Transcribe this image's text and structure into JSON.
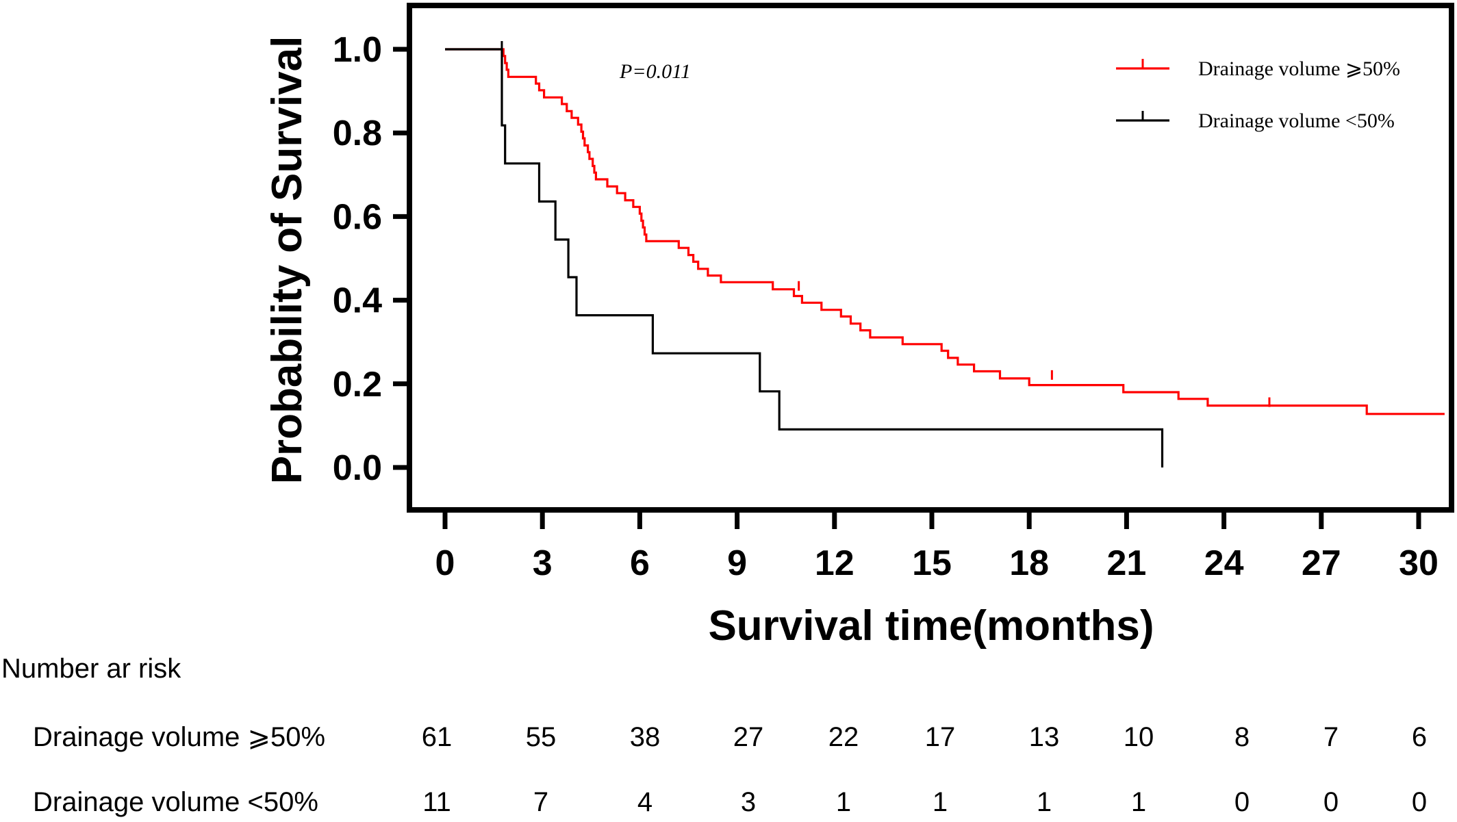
{
  "chart_data": {
    "type": "line",
    "subtype": "kaplan-meier",
    "title": "",
    "xlabel": "Survival time(months)",
    "ylabel": "Probability of Survival",
    "xlim": [
      0,
      30.8
    ],
    "ylim": [
      -0.1,
      1.1
    ],
    "xticks": [
      "0",
      "3",
      "6",
      "9",
      "12",
      "15",
      "18",
      "21",
      "24",
      "27",
      "30"
    ],
    "yticks": [
      "0.0",
      "0.2",
      "0.4",
      "0.6",
      "0.8",
      "1.0"
    ],
    "annotation": "P=0.011",
    "legend_position": "top-right",
    "series": [
      {
        "name": "Drainage volume ⩾50%",
        "color": "#ff0000",
        "steps": [
          [
            0,
            1.0
          ],
          [
            1.8,
            0.984
          ],
          [
            1.85,
            0.967
          ],
          [
            1.9,
            0.951
          ],
          [
            1.95,
            0.934
          ],
          [
            2.8,
            0.918
          ],
          [
            2.9,
            0.902
          ],
          [
            3.05,
            0.885
          ],
          [
            3.6,
            0.869
          ],
          [
            3.75,
            0.852
          ],
          [
            3.9,
            0.836
          ],
          [
            4.1,
            0.82
          ],
          [
            4.2,
            0.803
          ],
          [
            4.25,
            0.787
          ],
          [
            4.3,
            0.77
          ],
          [
            4.4,
            0.754
          ],
          [
            4.45,
            0.738
          ],
          [
            4.55,
            0.721
          ],
          [
            4.6,
            0.705
          ],
          [
            4.65,
            0.689
          ],
          [
            5.0,
            0.672
          ],
          [
            5.3,
            0.656
          ],
          [
            5.55,
            0.639
          ],
          [
            5.8,
            0.623
          ],
          [
            6.0,
            0.607
          ],
          [
            6.05,
            0.59
          ],
          [
            6.1,
            0.574
          ],
          [
            6.15,
            0.557
          ],
          [
            6.2,
            0.541
          ],
          [
            7.2,
            0.525
          ],
          [
            7.5,
            0.508
          ],
          [
            7.65,
            0.492
          ],
          [
            7.8,
            0.475
          ],
          [
            8.1,
            0.459
          ],
          [
            8.5,
            0.443
          ],
          [
            10.1,
            0.426
          ],
          [
            10.75,
            0.41
          ],
          [
            11.0,
            0.394
          ],
          [
            11.6,
            0.377
          ],
          [
            12.2,
            0.361
          ],
          [
            12.5,
            0.344
          ],
          [
            12.8,
            0.328
          ],
          [
            13.1,
            0.311
          ],
          [
            14.1,
            0.295
          ],
          [
            15.3,
            0.279
          ],
          [
            15.5,
            0.262
          ],
          [
            15.8,
            0.246
          ],
          [
            16.3,
            0.23
          ],
          [
            17.1,
            0.213
          ],
          [
            18.0,
            0.197
          ],
          [
            20.9,
            0.18
          ],
          [
            22.6,
            0.164
          ],
          [
            23.5,
            0.148
          ],
          [
            28.4,
            0.128
          ],
          [
            30.8,
            0.128
          ]
        ],
        "censored": [
          [
            10.9,
            0.426
          ],
          [
            18.7,
            0.213
          ],
          [
            25.4,
            0.148
          ]
        ]
      },
      {
        "name": "Drainage volume <50%",
        "color": "#000000",
        "steps": [
          [
            0,
            1.0
          ],
          [
            1.7,
            1.0
          ],
          [
            1.75,
            0.818
          ],
          [
            1.85,
            0.727
          ],
          [
            2.9,
            0.636
          ],
          [
            3.4,
            0.545
          ],
          [
            3.8,
            0.455
          ],
          [
            4.05,
            0.364
          ],
          [
            6.4,
            0.273
          ],
          [
            9.7,
            0.182
          ],
          [
            10.3,
            0.091
          ],
          [
            22.1,
            0.091
          ],
          [
            22.1,
            0.0
          ]
        ],
        "censored": [
          [
            1.75,
            1.0
          ]
        ]
      }
    ]
  },
  "risk_table": {
    "title": "Number ar risk",
    "rows": [
      {
        "label": "Drainage volume ⩾50%",
        "values": [
          "61",
          "55",
          "38",
          "27",
          "22",
          "17",
          "13",
          "10",
          "8",
          "7",
          "6"
        ]
      },
      {
        "label": "Drainage volume <50%",
        "values": [
          "11",
          "7",
          "4",
          "3",
          "1",
          "1",
          "1",
          "1",
          "0",
          "0",
          "0"
        ]
      }
    ]
  }
}
